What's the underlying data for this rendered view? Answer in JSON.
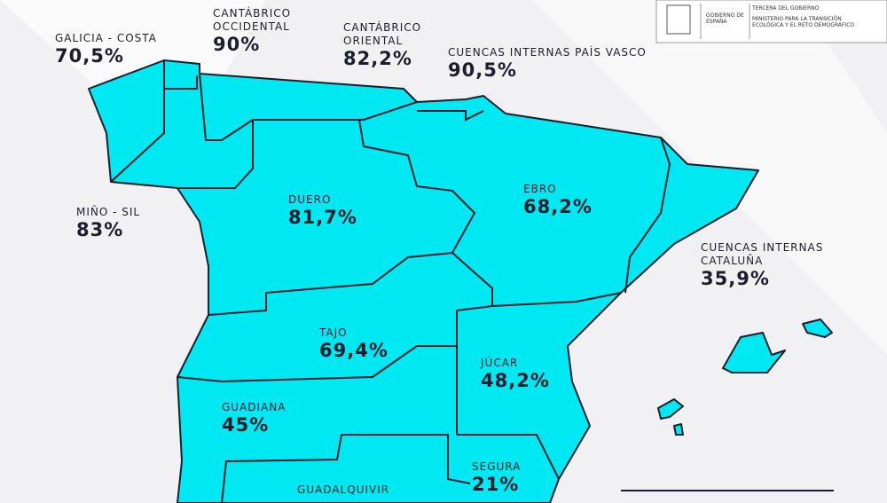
{
  "header": {
    "logo": "GOBIERNO DE ESPAÑA",
    "vicepresidency": "TERCERA DEL GOBIERNO",
    "ministry": "MINISTERIO PARA LA TRANSICIÓN ECOLÓGICA Y EL RETO DEMOGRÁFICO"
  },
  "basins": [
    {
      "name": "GALICIA - COSTA",
      "value": "70,5%"
    },
    {
      "name": "CANTÁBRICO\nOCCIDENTAL",
      "value": "90%"
    },
    {
      "name": "CANTÁBRICO\nORIENTAL",
      "value": "82,2%"
    },
    {
      "name": "CUENCAS INTERNAS PAÍS VASCO",
      "value": "90,5%"
    },
    {
      "name": "MIÑO - SIL",
      "value": "83%"
    },
    {
      "name": "DUERO",
      "value": "81,7%"
    },
    {
      "name": "EBRO",
      "value": "68,2%"
    },
    {
      "name": "CUENCAS INTERNAS\nCATALUÑA",
      "value": "35,9%"
    },
    {
      "name": "TAJO",
      "value": "69,4%"
    },
    {
      "name": "JÚCAR",
      "value": "48,2%"
    },
    {
      "name": "GUADIANA",
      "value": "45%"
    },
    {
      "name": "SEGURA",
      "value": "21%"
    },
    {
      "name": "GUADALQUIVIR",
      "value": ""
    }
  ]
}
